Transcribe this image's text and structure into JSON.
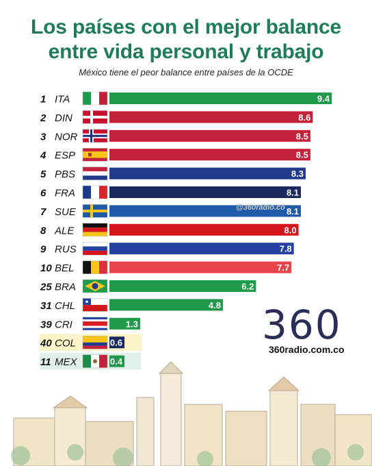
{
  "header": {
    "title_line1": "Los países con el mejor balance",
    "title_line2": "entre vida personal y trabajo",
    "subtitle": "México tiene el peor balance entre países de la OCDE"
  },
  "watermark": "@360radio.co",
  "brand": {
    "logo_text": "360",
    "site": "360radio.com.co"
  },
  "colors": {
    "title": "#1e7d57",
    "italy_green": "#1f9a4a",
    "red": "#c4213a",
    "navy": "#223a8c",
    "dark_navy": "#1b2a5e",
    "belgium_red": "#e8444c",
    "colombia_highlight": "#fbf3c6",
    "mexico_highlight": "#e2f0ea"
  },
  "chart_data": {
    "type": "bar",
    "orientation": "horizontal",
    "categories": [
      "ITA",
      "DIN",
      "NOR",
      "ESP",
      "PBS",
      "FRA",
      "SUE",
      "ALE",
      "RUS",
      "BEL",
      "BRA",
      "CHL",
      "CRI",
      "COL",
      "MEX"
    ],
    "ranks": [
      "1",
      "2",
      "3",
      "4",
      "5",
      "6",
      "7",
      "8",
      "9",
      "10",
      "25",
      "31",
      "39",
      "40",
      "11"
    ],
    "values": [
      9.4,
      8.6,
      8.5,
      8.5,
      8.3,
      8.1,
      8.1,
      8.0,
      7.8,
      7.7,
      6.2,
      4.8,
      1.3,
      0.6,
      0.4
    ],
    "value_labels": [
      "9.4",
      "8.6",
      "8.5",
      "8.5",
      "8.3",
      "8.1",
      "8.1",
      "8.0",
      "7.8",
      "7.7",
      "6.2",
      "4.8",
      "1.3",
      "0.6",
      "0.4"
    ],
    "bar_colors": [
      "#1f9a4a",
      "#c4213a",
      "#c4213a",
      "#c4213a",
      "#223a8c",
      "#1b2a5e",
      "#1f5aa8",
      "#d5151c",
      "#2440a0",
      "#e8444c",
      "#1f9a4a",
      "#1f9a4a",
      "#1f9a4a",
      "#1b2a5e",
      "#1f9a4a"
    ],
    "flags": [
      "italy",
      "denmark",
      "norway",
      "spain",
      "netherlands",
      "france",
      "sweden",
      "germany",
      "russia",
      "belgium",
      "brazil",
      "chile",
      "costa-rica",
      "colombia",
      "mexico"
    ],
    "highlighted": {
      "COL": "#fbf3c6",
      "MEX": "#e2f0ea"
    },
    "xlim": [
      0,
      9.4
    ],
    "title": "Los países con el mejor balance entre vida personal y trabajo",
    "xlabel": "",
    "ylabel": "",
    "grid": false
  }
}
